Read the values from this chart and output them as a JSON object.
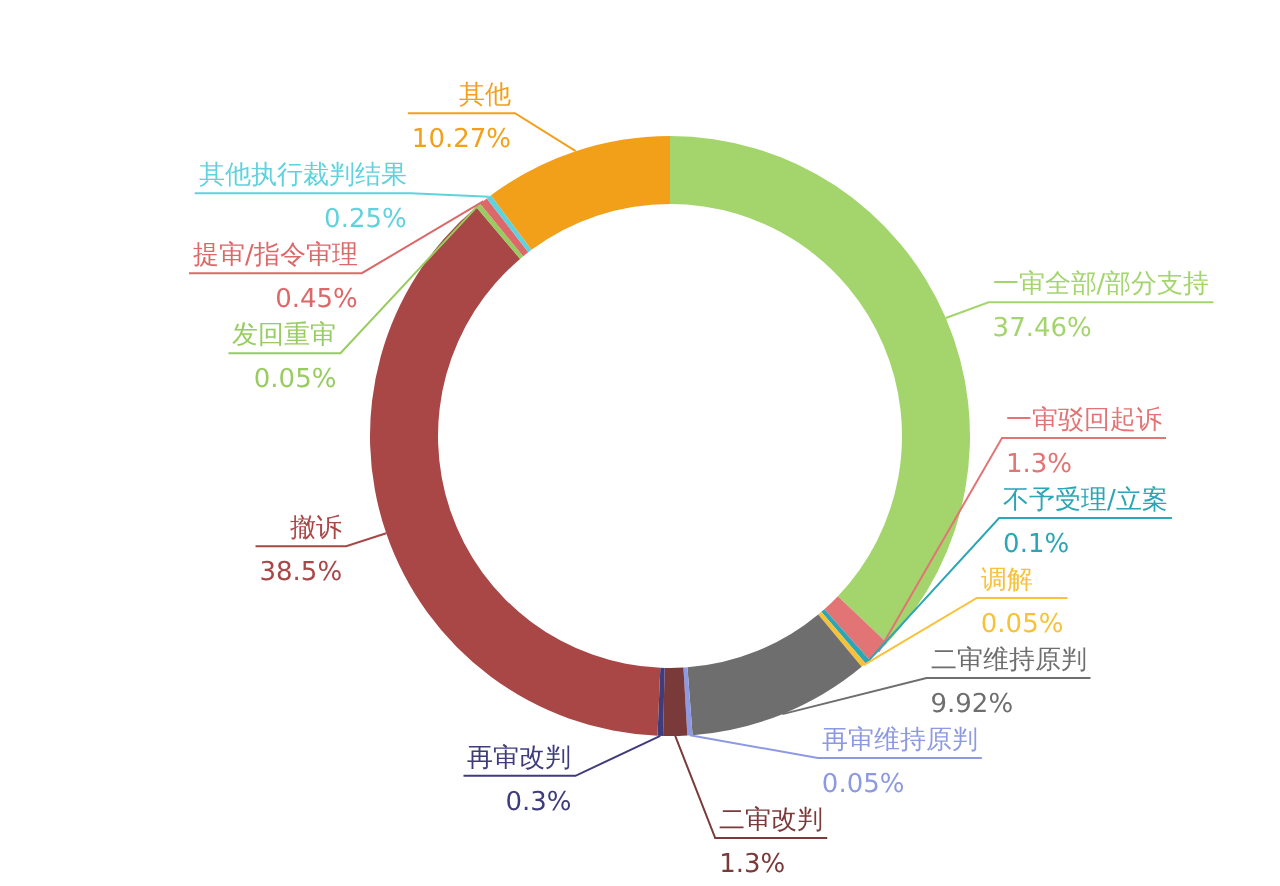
{
  "chart_data": {
    "type": "donut",
    "categories": [
      "一审全部/部分支持",
      "一审驳回起诉",
      "不予受理/立案",
      "调解",
      "二审维持原判",
      "再审维持原判",
      "二审改判",
      "再审改判",
      "撤诉",
      "发回重审",
      "提审/指令审理",
      "其他执行裁判结果",
      "其他"
    ],
    "values": [
      37.46,
      1.3,
      0.1,
      0.05,
      9.92,
      0.05,
      1.3,
      0.3,
      38.5,
      0.05,
      0.45,
      0.25,
      10.27
    ],
    "value_labels": [
      "37.46%",
      "1.3%",
      "0.1%",
      "0.05%",
      "9.92%",
      "0.05%",
      "1.3%",
      "0.3%",
      "38.5%",
      "0.05%",
      "0.45%",
      "0.25%",
      "10.27%"
    ],
    "colors": [
      "#a3d56c",
      "#e37475",
      "#2aa6b6",
      "#f7c23a",
      "#6e6e6e",
      "#8d99e0",
      "#7a3a3a",
      "#3e3c7c",
      "#a94646",
      "#98cc60",
      "#dc6869",
      "#5fd2de",
      "#f2a01a"
    ]
  }
}
